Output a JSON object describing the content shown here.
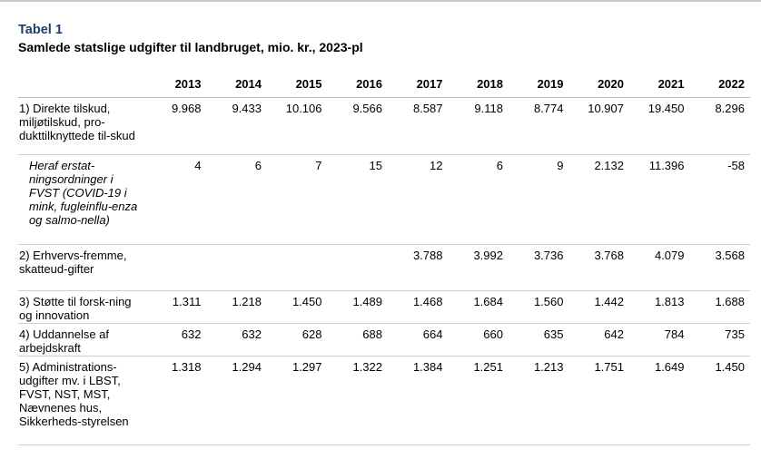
{
  "header": {
    "label": "Tabel 1",
    "title": "Samlede statslige udgifter til landbruget, mio. kr., 2023-pl"
  },
  "table": {
    "years": [
      "2013",
      "2014",
      "2015",
      "2016",
      "2017",
      "2018",
      "2019",
      "2020",
      "2021",
      "2022"
    ],
    "rows": [
      {
        "label": "1) Direkte tilskud, miljøtilskud, pro-dukttilknyttede til-skud",
        "values": [
          "9.968",
          "9.433",
          "10.106",
          "9.566",
          "8.587",
          "9.118",
          "8.774",
          "10.907",
          "19.450",
          "8.296"
        ]
      },
      {
        "label": "Heraf erstat-ningsordninger i FVST (COVID-19 i mink, fugleinflu-enza og salmo-nella)",
        "values": [
          "4",
          "6",
          "7",
          "15",
          "12",
          "6",
          "9",
          "2.132",
          "11.396",
          "-58"
        ]
      },
      {
        "label": "2) Erhvervs-fremme, skatteud-gifter",
        "values": [
          "",
          "",
          "",
          "",
          "3.788",
          "3.992",
          "3.736",
          "3.768",
          "4.079",
          "3.568"
        ]
      },
      {
        "label": "3) Støtte til forsk-ning og innovation",
        "values": [
          "1.311",
          "1.218",
          "1.450",
          "1.489",
          "1.468",
          "1.684",
          "1.560",
          "1.442",
          "1.813",
          "1.688"
        ]
      },
      {
        "label": "4) Uddannelse af arbejdskraft",
        "values": [
          "632",
          "632",
          "628",
          "688",
          "664",
          "660",
          "635",
          "642",
          "784",
          "735"
        ]
      },
      {
        "label": "5) Administrations-udgifter mv. i LBST, FVST, NST, MST, Nævnenes hus, Sikkerheds-styrelsen",
        "values": [
          "1.318",
          "1.294",
          "1.297",
          "1.322",
          "1.384",
          "1.251",
          "1.213",
          "1.751",
          "1.649",
          "1.450"
        ]
      }
    ]
  }
}
